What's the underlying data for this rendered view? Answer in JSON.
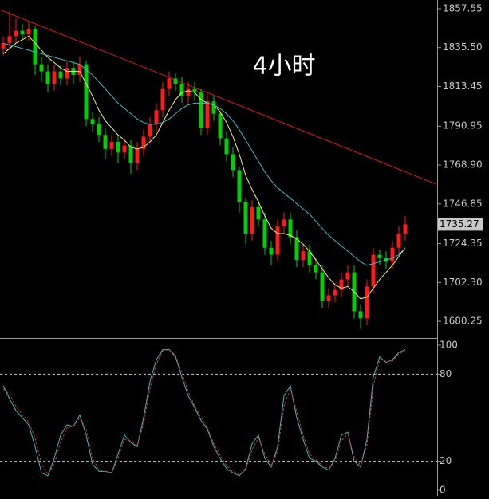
{
  "chart_data": [
    {
      "type": "candlestick",
      "annotation": "4小时",
      "up_color": "#ff1a1a",
      "down_color": "#00d000",
      "open": [
        1835,
        1838,
        1842,
        1845,
        1843,
        1846,
        1826,
        1822,
        1815,
        1822,
        1818,
        1824,
        1820,
        1826,
        1795,
        1792,
        1786,
        1778,
        1782,
        1776,
        1780,
        1770,
        1778,
        1785,
        1792,
        1800,
        1812,
        1818,
        1815,
        1808,
        1812,
        1810,
        1790,
        1805,
        1798,
        1784,
        1775,
        1766,
        1748,
        1730,
        1745,
        1738,
        1722,
        1718,
        1734,
        1738,
        1728,
        1715,
        1720,
        1712,
        1708,
        1692,
        1695,
        1698,
        1704,
        1708,
        1686,
        1682,
        1700,
        1718,
        1716,
        1714,
        1722,
        1730
      ],
      "high": [
        1842,
        1856,
        1852,
        1849,
        1850,
        1848,
        1830,
        1826,
        1826,
        1826,
        1828,
        1828,
        1830,
        1828,
        1799,
        1796,
        1790,
        1786,
        1786,
        1784,
        1783,
        1782,
        1789,
        1796,
        1804,
        1816,
        1822,
        1821,
        1819,
        1816,
        1816,
        1812,
        1809,
        1808,
        1800,
        1788,
        1779,
        1768,
        1750,
        1749,
        1749,
        1742,
        1726,
        1738,
        1742,
        1742,
        1732,
        1724,
        1724,
        1716,
        1712,
        1699,
        1702,
        1708,
        1712,
        1712,
        1690,
        1704,
        1722,
        1721,
        1720,
        1726,
        1734,
        1740
      ],
      "low": [
        1831,
        1834,
        1838,
        1839,
        1839,
        1820,
        1816,
        1810,
        1811,
        1814,
        1814,
        1815,
        1816,
        1791,
        1788,
        1782,
        1772,
        1774,
        1770,
        1772,
        1764,
        1766,
        1774,
        1781,
        1788,
        1796,
        1808,
        1811,
        1804,
        1804,
        1806,
        1786,
        1786,
        1794,
        1780,
        1771,
        1762,
        1742,
        1724,
        1726,
        1734,
        1718,
        1712,
        1714,
        1730,
        1724,
        1711,
        1711,
        1708,
        1704,
        1688,
        1688,
        1691,
        1694,
        1700,
        1682,
        1676,
        1678,
        1696,
        1712,
        1710,
        1710,
        1718,
        1726
      ],
      "close": [
        1838,
        1842,
        1845,
        1843,
        1846,
        1826,
        1822,
        1815,
        1822,
        1818,
        1824,
        1820,
        1826,
        1795,
        1792,
        1786,
        1778,
        1782,
        1776,
        1780,
        1770,
        1778,
        1785,
        1792,
        1800,
        1812,
        1818,
        1815,
        1808,
        1812,
        1810,
        1790,
        1805,
        1798,
        1784,
        1775,
        1766,
        1748,
        1730,
        1745,
        1738,
        1722,
        1718,
        1734,
        1738,
        1728,
        1715,
        1720,
        1712,
        1708,
        1692,
        1695,
        1698,
        1704,
        1708,
        1686,
        1682,
        1700,
        1718,
        1716,
        1714,
        1722,
        1730,
        1735.27
      ],
      "series": [
        {
          "color": "#f0f070",
          "values": [
            1832,
            1835,
            1838,
            1840,
            1842,
            1838,
            1834,
            1830,
            1827,
            1824,
            1822,
            1822,
            1822,
            1815,
            1808,
            1800,
            1794,
            1790,
            1786,
            1783,
            1779,
            1778,
            1779,
            1782,
            1786,
            1793,
            1800,
            1806,
            1810,
            1811,
            1810,
            1806,
            1804,
            1803,
            1799,
            1793,
            1785,
            1775,
            1763,
            1755,
            1748,
            1740,
            1733,
            1730,
            1730,
            1729,
            1727,
            1724,
            1720,
            1715,
            1710,
            1705,
            1701,
            1699,
            1700,
            1697,
            1693,
            1694,
            1699,
            1704,
            1708,
            1712,
            1717,
            1722
          ]
        },
        {
          "color": "#3cb8c8",
          "values": [
            1838,
            1837,
            1836,
            1835,
            1834,
            1833,
            1832,
            1831,
            1830,
            1829,
            1828,
            1827,
            1826,
            1823,
            1820,
            1816,
            1812,
            1808,
            1804,
            1801,
            1798,
            1795,
            1793,
            1792,
            1792,
            1793,
            1795,
            1798,
            1801,
            1803,
            1804,
            1804,
            1804,
            1803,
            1801,
            1798,
            1794,
            1789,
            1783,
            1777,
            1771,
            1765,
            1760,
            1756,
            1753,
            1750,
            1747,
            1744,
            1741,
            1737,
            1733,
            1729,
            1726,
            1723,
            1720,
            1717,
            1714,
            1712,
            1713,
            1714,
            1715,
            1716,
            1718,
            1722
          ]
        }
      ],
      "trendline": {
        "color": "#e01818",
        "x": [
          -0.5,
          67.875
        ],
        "y": [
          1857,
          1758
        ]
      },
      "last_price": 1735.27,
      "ylim": [
        1672.6,
        1862.5
      ],
      "yticks": [
        1680.25,
        {
          "value": 1702.3,
          "label": "1702.30"
        },
        1724.35,
        1746.85,
        {
          "value": 1768.9,
          "label": "1768.90"
        },
        1790.95,
        1813.45,
        {
          "value": 1835.5,
          "label": "1835.50"
        },
        1857.55
      ]
    },
    {
      "type": "line",
      "series": [
        {
          "color": "#3cb8c8",
          "style": "solid",
          "values": [
            72,
            63,
            55,
            50,
            45,
            30,
            12,
            10,
            22,
            38,
            45,
            44,
            52,
            38,
            18,
            13,
            13,
            12,
            25,
            38,
            33,
            30,
            50,
            75,
            90,
            97,
            97,
            92,
            78,
            65,
            57,
            48,
            42,
            30,
            22,
            15,
            12,
            10,
            15,
            32,
            38,
            22,
            16,
            30,
            65,
            72,
            50,
            35,
            22,
            20,
            16,
            14,
            22,
            38,
            40,
            20,
            16,
            35,
            78,
            92,
            88,
            90,
            95,
            97
          ]
        },
        {
          "color": "#e03030",
          "style": "dashed",
          "values": [
            70,
            66,
            58,
            52,
            47,
            36,
            18,
            11,
            18,
            33,
            43,
            44,
            50,
            42,
            22,
            14,
            13,
            12,
            22,
            35,
            34,
            31,
            46,
            70,
            87,
            96,
            97,
            93,
            81,
            68,
            58,
            50,
            43,
            32,
            24,
            17,
            13,
            11,
            14,
            28,
            36,
            25,
            17,
            27,
            58,
            70,
            54,
            38,
            25,
            21,
            17,
            15,
            20,
            34,
            39,
            23,
            17,
            31,
            72,
            90,
            89,
            89,
            94,
            96
          ]
        }
      ],
      "ylim": [
        0,
        100
      ],
      "yticks": [
        0,
        20,
        80,
        100
      ],
      "levels": [
        20,
        80
      ]
    }
  ]
}
